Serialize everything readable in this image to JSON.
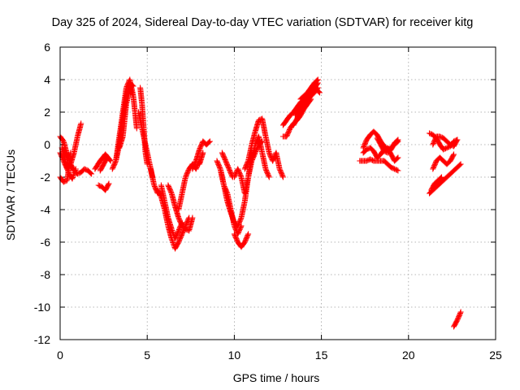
{
  "chart_data": {
    "type": "scatter",
    "title": "Day 325 of 2024, Sidereal Day-to-day VTEC variation (SDTVAR) for receiver kitg",
    "xlabel": "GPS time / hours",
    "ylabel": "SDTVAR / TECUs",
    "xlim": [
      0,
      25
    ],
    "ylim": [
      -12,
      6
    ],
    "xticks": [
      "0",
      "5",
      "10",
      "15",
      "20",
      "25"
    ],
    "yticks": [
      "-12",
      "-10",
      "-8",
      "-6",
      "-4",
      "-2",
      "0",
      "2",
      "4",
      "6"
    ],
    "grid": true,
    "marker": "+",
    "marker_color": "#ff0000",
    "segments": [
      {
        "x": [
          0.0,
          0.2,
          0.4,
          0.6,
          0.8,
          1.0,
          1.2
        ],
        "y": [
          -0.5,
          -1.0,
          -1.5,
          -1.2,
          -0.5,
          0.5,
          1.3
        ]
      },
      {
        "x": [
          0.0,
          0.2,
          0.4,
          0.6,
          0.8,
          1.0,
          1.2,
          1.4,
          1.6,
          1.8
        ],
        "y": [
          0.5,
          0.2,
          -0.6,
          -1.2,
          -1.6,
          -1.8,
          -1.7,
          -1.5,
          -1.6,
          -1.8
        ]
      },
      {
        "x": [
          0.0,
          0.2,
          0.4,
          0.5,
          0.6
        ],
        "y": [
          -2.0,
          -2.3,
          -2.2,
          -1.5,
          -0.5
        ]
      },
      {
        "x": [
          0.1,
          0.3,
          0.5,
          0.7,
          0.9
        ],
        "y": [
          -0.2,
          -1.0,
          -1.8,
          -2.1,
          -1.5
        ]
      },
      {
        "x": [
          2.2,
          2.4,
          2.6,
          2.8
        ],
        "y": [
          -2.5,
          -2.6,
          -2.8,
          -2.4
        ]
      },
      {
        "x": [
          2.0,
          2.3,
          2.6,
          2.9
        ],
        "y": [
          -1.5,
          -1.0,
          -0.6,
          -1.0
        ]
      },
      {
        "x": [
          2.3,
          2.5,
          2.7
        ],
        "y": [
          -1.6,
          -1.2,
          -0.8
        ]
      },
      {
        "x": [
          3.0,
          3.2,
          3.4,
          3.6,
          3.8,
          4.0,
          4.2,
          4.4
        ],
        "y": [
          -1.5,
          -1.0,
          0.5,
          2.0,
          3.5,
          4.0,
          3.0,
          1.0
        ]
      },
      {
        "x": [
          3.2,
          3.4,
          3.6,
          3.8,
          4.0,
          4.2
        ],
        "y": [
          -1.0,
          0.0,
          1.5,
          3.0,
          3.8,
          3.6
        ]
      },
      {
        "x": [
          3.4,
          3.6,
          3.8,
          4.0,
          4.2
        ],
        "y": [
          -0.2,
          0.5,
          2.5,
          3.5,
          3.0
        ]
      },
      {
        "x": [
          4.6,
          4.7,
          4.8,
          4.9,
          5.0
        ],
        "y": [
          3.5,
          2.5,
          1.0,
          -0.5,
          -1.2
        ]
      },
      {
        "x": [
          4.5,
          4.7,
          4.9,
          5.1,
          5.3
        ],
        "y": [
          2.0,
          1.0,
          0.0,
          -1.0,
          -2.0
        ]
      },
      {
        "x": [
          5.2,
          5.4,
          5.6
        ],
        "y": [
          -1.5,
          -2.5,
          -3.0
        ]
      },
      {
        "x": [
          5.6,
          5.8,
          6.0,
          6.2,
          6.4,
          6.6,
          6.8,
          7.0,
          7.2,
          7.4
        ],
        "y": [
          -2.8,
          -3.2,
          -4.0,
          -5.0,
          -5.8,
          -6.4,
          -6.0,
          -5.5,
          -5.0,
          -4.5
        ]
      },
      {
        "x": [
          5.8,
          6.0,
          6.2,
          6.4,
          6.6,
          6.8,
          7.0
        ],
        "y": [
          -2.5,
          -3.5,
          -4.5,
          -5.2,
          -5.8,
          -5.3,
          -4.8
        ]
      },
      {
        "x": [
          6.2,
          6.4,
          6.6,
          6.8,
          7.0,
          7.2,
          7.4,
          7.6
        ],
        "y": [
          -2.5,
          -3.0,
          -3.8,
          -4.5,
          -5.0,
          -5.2,
          -5.3,
          -4.5
        ]
      },
      {
        "x": [
          6.8,
          7.0,
          7.2,
          7.4,
          7.6,
          7.8,
          8.0
        ],
        "y": [
          -4.0,
          -3.0,
          -2.0,
          -1.5,
          -1.2,
          -1.5,
          -1.0
        ]
      },
      {
        "x": [
          7.6,
          7.8,
          8.0,
          8.2,
          8.4,
          8.6
        ],
        "y": [
          -1.5,
          -1.0,
          -0.3,
          0.2,
          0.0,
          0.2
        ]
      },
      {
        "x": [
          8.0,
          8.2
        ],
        "y": [
          -1.2,
          -0.5
        ]
      },
      {
        "x": [
          9.0,
          9.2,
          9.4,
          9.6,
          9.8,
          10.0,
          10.2,
          10.4,
          10.6,
          10.8,
          11.0
        ],
        "y": [
          -1.0,
          -1.5,
          -2.5,
          -3.5,
          -4.2,
          -4.8,
          -5.0,
          -4.5,
          -3.5,
          -2.0,
          -0.5
        ]
      },
      {
        "x": [
          9.2,
          9.4,
          9.6,
          9.8,
          10.0,
          10.2,
          10.4
        ],
        "y": [
          -1.5,
          -2.5,
          -3.0,
          -4.0,
          -5.0,
          -5.5,
          -5.0
        ]
      },
      {
        "x": [
          9.3,
          9.5,
          9.7,
          9.9
        ],
        "y": [
          -0.5,
          -1.0,
          -1.5,
          -2.0
        ]
      },
      {
        "x": [
          10.0,
          10.2,
          10.4,
          10.6,
          10.8
        ],
        "y": [
          -5.5,
          -6.0,
          -6.3,
          -6.0,
          -5.5
        ]
      },
      {
        "x": [
          10.0,
          10.2,
          10.4,
          10.6,
          10.8,
          11.0,
          11.2,
          11.4,
          11.6,
          11.8,
          12.0
        ],
        "y": [
          -2.0,
          -1.5,
          -2.0,
          -3.0,
          -2.0,
          -1.0,
          0.0,
          0.5,
          -0.5,
          -1.5,
          -2.0
        ]
      },
      {
        "x": [
          10.6,
          10.8,
          11.0,
          11.2,
          11.4,
          11.6,
          11.8,
          12.0,
          12.2
        ],
        "y": [
          -1.5,
          -1.0,
          0.0,
          0.8,
          1.5,
          1.6,
          0.5,
          -0.5,
          -1.0
        ]
      },
      {
        "x": [
          11.0,
          11.2,
          11.4,
          11.6
        ],
        "y": [
          -1.0,
          -0.5,
          0.0,
          0.2
        ]
      },
      {
        "x": [
          12.2,
          12.4,
          12.6,
          12.8
        ],
        "y": [
          -1.0,
          -0.5,
          -1.5,
          -2.0
        ]
      },
      {
        "x": [
          12.8,
          13.0,
          13.2,
          13.4,
          13.6,
          13.8,
          14.0,
          14.2,
          14.4,
          14.6,
          14.8
        ],
        "y": [
          1.2,
          1.5,
          1.8,
          2.0,
          2.3,
          2.6,
          2.8,
          3.0,
          3.2,
          3.5,
          3.8
        ]
      },
      {
        "x": [
          12.8,
          13.0,
          13.2,
          13.4,
          13.6,
          13.8,
          14.0,
          14.2,
          14.4
        ],
        "y": [
          0.5,
          0.5,
          1.0,
          1.3,
          1.5,
          1.8,
          2.2,
          2.5,
          2.8
        ]
      },
      {
        "x": [
          13.4,
          13.6,
          13.8,
          14.0,
          14.2,
          14.4,
          14.6,
          14.8
        ],
        "y": [
          1.2,
          1.6,
          2.0,
          2.4,
          2.7,
          3.0,
          3.2,
          3.5
        ]
      },
      {
        "x": [
          13.8,
          14.0,
          14.2,
          14.4,
          14.6,
          14.8
        ],
        "y": [
          2.8,
          3.0,
          3.2,
          3.5,
          3.8,
          4.0
        ]
      },
      {
        "x": [
          13.5,
          13.7,
          13.9,
          14.1,
          14.3,
          14.5,
          14.7,
          14.9
        ],
        "y": [
          1.8,
          2.2,
          2.6,
          2.8,
          3.0,
          3.2,
          3.4,
          3.2
        ]
      },
      {
        "x": [
          17.4,
          17.6,
          17.8,
          18.0,
          18.2,
          18.4,
          18.6,
          18.8,
          19.0,
          19.2,
          19.4
        ],
        "y": [
          -0.2,
          0.3,
          0.6,
          0.8,
          0.6,
          0.2,
          -0.1,
          -0.3,
          -0.2,
          0.0,
          0.2
        ]
      },
      {
        "x": [
          17.4,
          17.6,
          17.8,
          18.0,
          18.2,
          18.4,
          18.6,
          18.8,
          19.0,
          19.2,
          19.4
        ],
        "y": [
          -0.5,
          -0.3,
          -0.2,
          -0.4,
          -0.8,
          -0.6,
          -0.3,
          -0.2,
          -0.6,
          -1.0,
          -0.8
        ]
      },
      {
        "x": [
          17.2,
          17.4,
          17.6,
          17.8,
          18.0,
          18.2,
          18.4,
          18.6,
          18.8,
          19.0,
          19.2,
          19.4
        ],
        "y": [
          -1.0,
          -1.0,
          -1.0,
          -0.9,
          -1.0,
          -1.0,
          -1.0,
          -1.0,
          -1.2,
          -1.4,
          -1.5,
          -1.6
        ]
      },
      {
        "x": [
          18.2,
          18.4,
          18.6,
          18.8,
          19.0,
          19.2,
          19.4
        ],
        "y": [
          0.4,
          0.0,
          -0.4,
          -0.5,
          -0.3,
          0.1,
          0.3
        ]
      },
      {
        "x": [
          21.2,
          21.4,
          21.6,
          21.8,
          22.0,
          22.2,
          22.4,
          22.6,
          22.8
        ],
        "y": [
          0.7,
          0.6,
          0.4,
          0.0,
          -0.3,
          -0.2,
          -0.1,
          0.2,
          0.3
        ]
      },
      {
        "x": [
          21.4,
          21.6,
          21.8,
          22.0,
          22.2,
          22.4,
          22.6,
          22.8
        ],
        "y": [
          0.0,
          0.5,
          0.5,
          0.4,
          0.2,
          0.0,
          -0.1,
          0.3
        ]
      },
      {
        "x": [
          21.4,
          21.6,
          21.8,
          22.0,
          22.2,
          22.4,
          22.6
        ],
        "y": [
          -1.5,
          -1.0,
          -0.8,
          -1.0,
          -1.2,
          -1.0,
          -0.6
        ]
      },
      {
        "x": [
          21.2,
          21.4,
          21.6,
          21.8,
          22.0,
          22.2,
          22.4,
          22.6,
          22.8,
          23.0
        ],
        "y": [
          -3.0,
          -2.8,
          -2.6,
          -2.4,
          -2.2,
          -2.0,
          -1.8,
          -1.6,
          -1.4,
          -1.2
        ]
      },
      {
        "x": [
          21.3,
          21.5,
          21.7,
          21.9
        ],
        "y": [
          -2.8,
          -2.4,
          -2.2,
          -2.0
        ]
      },
      {
        "x": [
          22.6,
          22.8,
          23.0
        ],
        "y": [
          -11.2,
          -10.8,
          -10.3
        ]
      }
    ]
  }
}
